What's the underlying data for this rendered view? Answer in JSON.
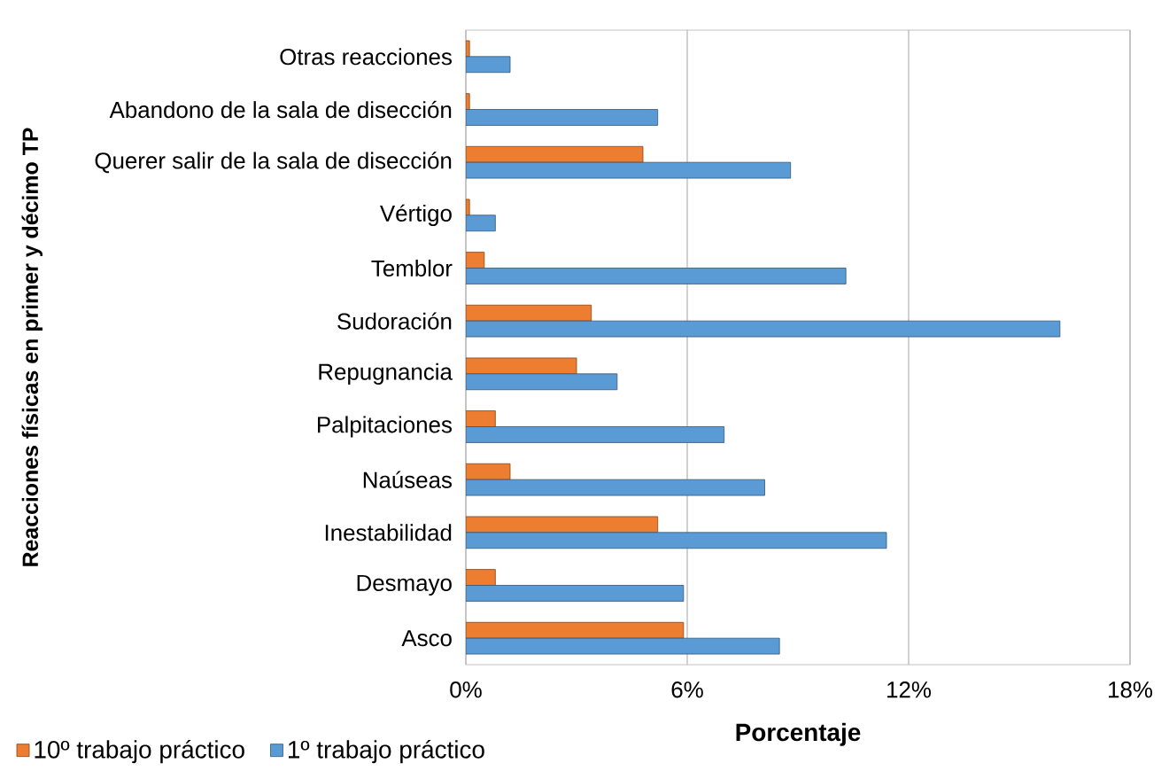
{
  "chart_data": {
    "type": "bar",
    "orientation": "horizontal",
    "categories": [
      "Otras reacciones",
      "Abandono de la sala de disección",
      "Querer salir de la sala de disección",
      "Vértigo",
      "Temblor",
      "Sudoración",
      "Repugnancia",
      "Palpitaciones",
      "Naúseas",
      "Inestabilidad",
      "Desmayo",
      "Asco"
    ],
    "series": [
      {
        "name": "10º trabajo práctico",
        "color": "#ed7d31",
        "values": [
          0.1,
          0.1,
          4.8,
          0.1,
          0.5,
          3.4,
          3.0,
          0.8,
          1.2,
          5.2,
          0.8,
          5.9
        ]
      },
      {
        "name": "1º trabajo práctico",
        "color": "#5b9bd5",
        "values": [
          1.2,
          5.2,
          8.8,
          0.8,
          10.3,
          16.1,
          4.1,
          7.0,
          8.1,
          11.4,
          5.9,
          8.5
        ]
      }
    ],
    "xlabel": "Porcentaje",
    "ylabel": "Reacciones físicas en primer y décimo TP",
    "xlim": [
      0,
      18
    ],
    "xticks": [
      {
        "value": 0,
        "label": "0%"
      },
      {
        "value": 6,
        "label": "6%"
      },
      {
        "value": 12,
        "label": "12%"
      },
      {
        "value": 18,
        "label": "18%"
      }
    ],
    "grid": "x",
    "legend": "bottom left"
  }
}
